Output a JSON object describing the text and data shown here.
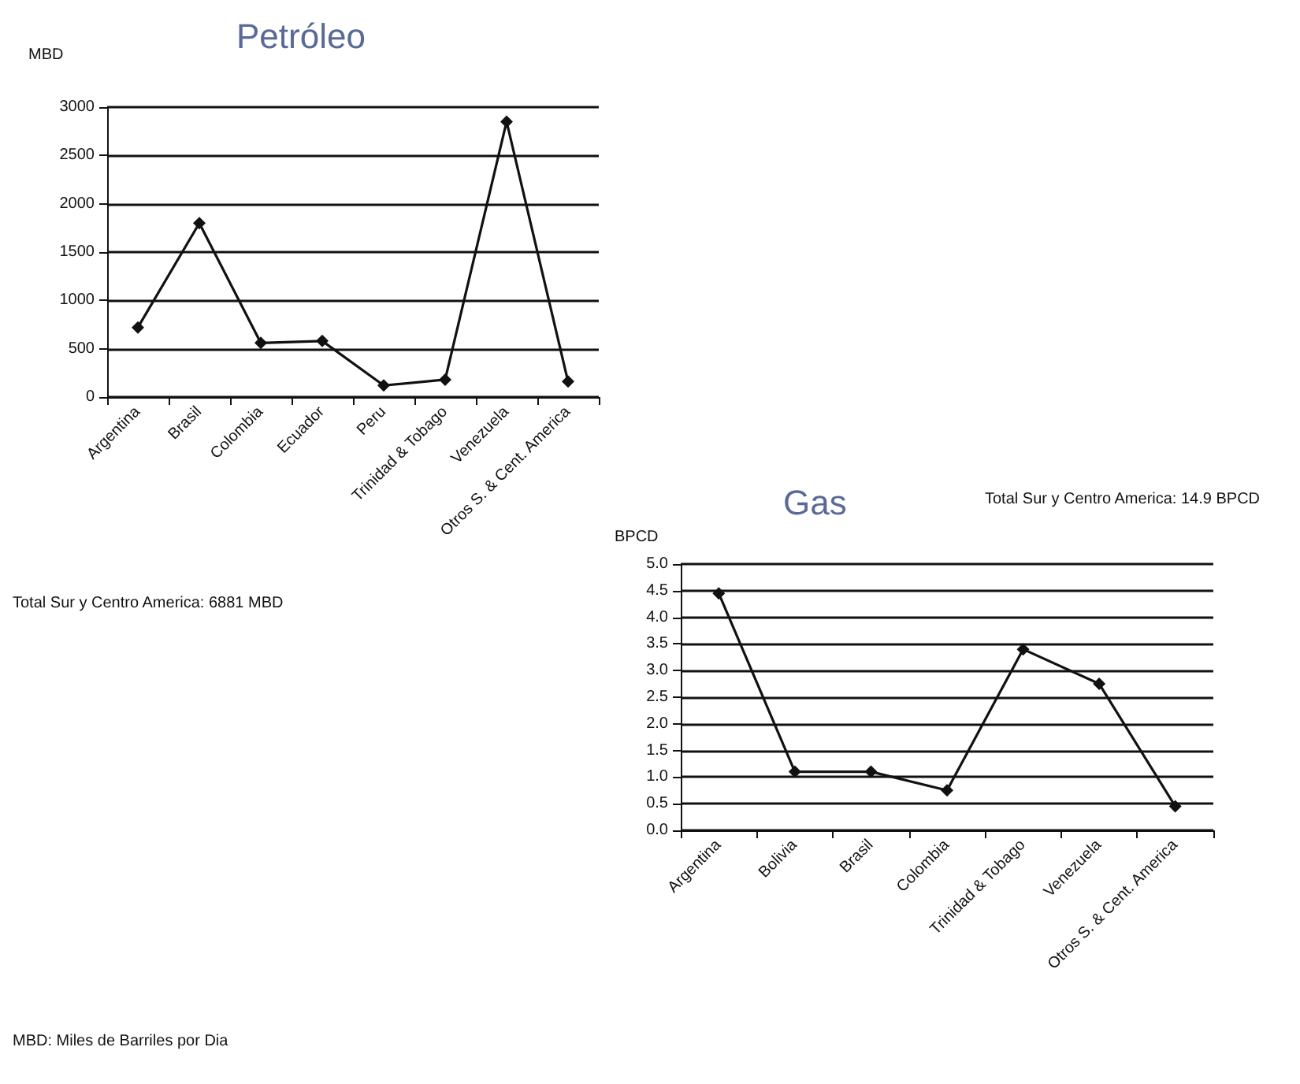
{
  "chart_data": [
    {
      "type": "line",
      "title": "Petróleo",
      "ylabel": "MBD",
      "categories": [
        "Argentina",
        "Brasil",
        "Colombia",
        "Ecuador",
        "Peru",
        "Trinidad & Tobago",
        "Venezuela",
        "Otros S. & Cent. America"
      ],
      "series": [
        {
          "color": "#111111",
          "values": [
            720,
            1800,
            560,
            580,
            120,
            180,
            2850,
            160
          ]
        }
      ],
      "ylim": [
        0,
        3000
      ],
      "yticks": [
        0,
        500,
        1000,
        1500,
        2000,
        2500,
        3000
      ],
      "grid": "y",
      "marker": "diamond",
      "line_style": "solid",
      "annotations": [
        "Total Sur y Centro America: 6881 MBD",
        "MBD: Miles de Barriles por Dia"
      ]
    },
    {
      "type": "line",
      "title": "Gas",
      "ylabel": "BPCD",
      "categories": [
        "Argentina",
        "Bolivia",
        "Brasil",
        "Colombia",
        "Trinidad & Tobago",
        "Venezuela",
        "Otros S. & Cent. America"
      ],
      "series": [
        {
          "color": "#111111",
          "values": [
            4.45,
            1.1,
            1.1,
            0.75,
            3.4,
            2.75,
            0.45
          ]
        }
      ],
      "ylim": [
        0,
        5
      ],
      "yticks": [
        {
          "value": 0,
          "label": "0.0"
        },
        {
          "value": 0.5,
          "label": "0.5"
        },
        {
          "value": 1,
          "label": "1.0"
        },
        {
          "value": 1.5,
          "label": "1.5"
        },
        {
          "value": 2,
          "label": "2.0"
        },
        {
          "value": 2.5,
          "label": "2.5"
        },
        {
          "value": 3,
          "label": "3.0"
        },
        {
          "value": 3.5,
          "label": "3.5"
        },
        {
          "value": 4,
          "label": "4.0"
        },
        {
          "value": 4.5,
          "label": "4.5"
        },
        {
          "value": 5,
          "label": "5.0"
        }
      ],
      "grid": "y",
      "marker": "diamond",
      "line_style": "solid",
      "annotations": [
        "Total Sur y Centro America: 14.9 BPCD"
      ]
    }
  ]
}
